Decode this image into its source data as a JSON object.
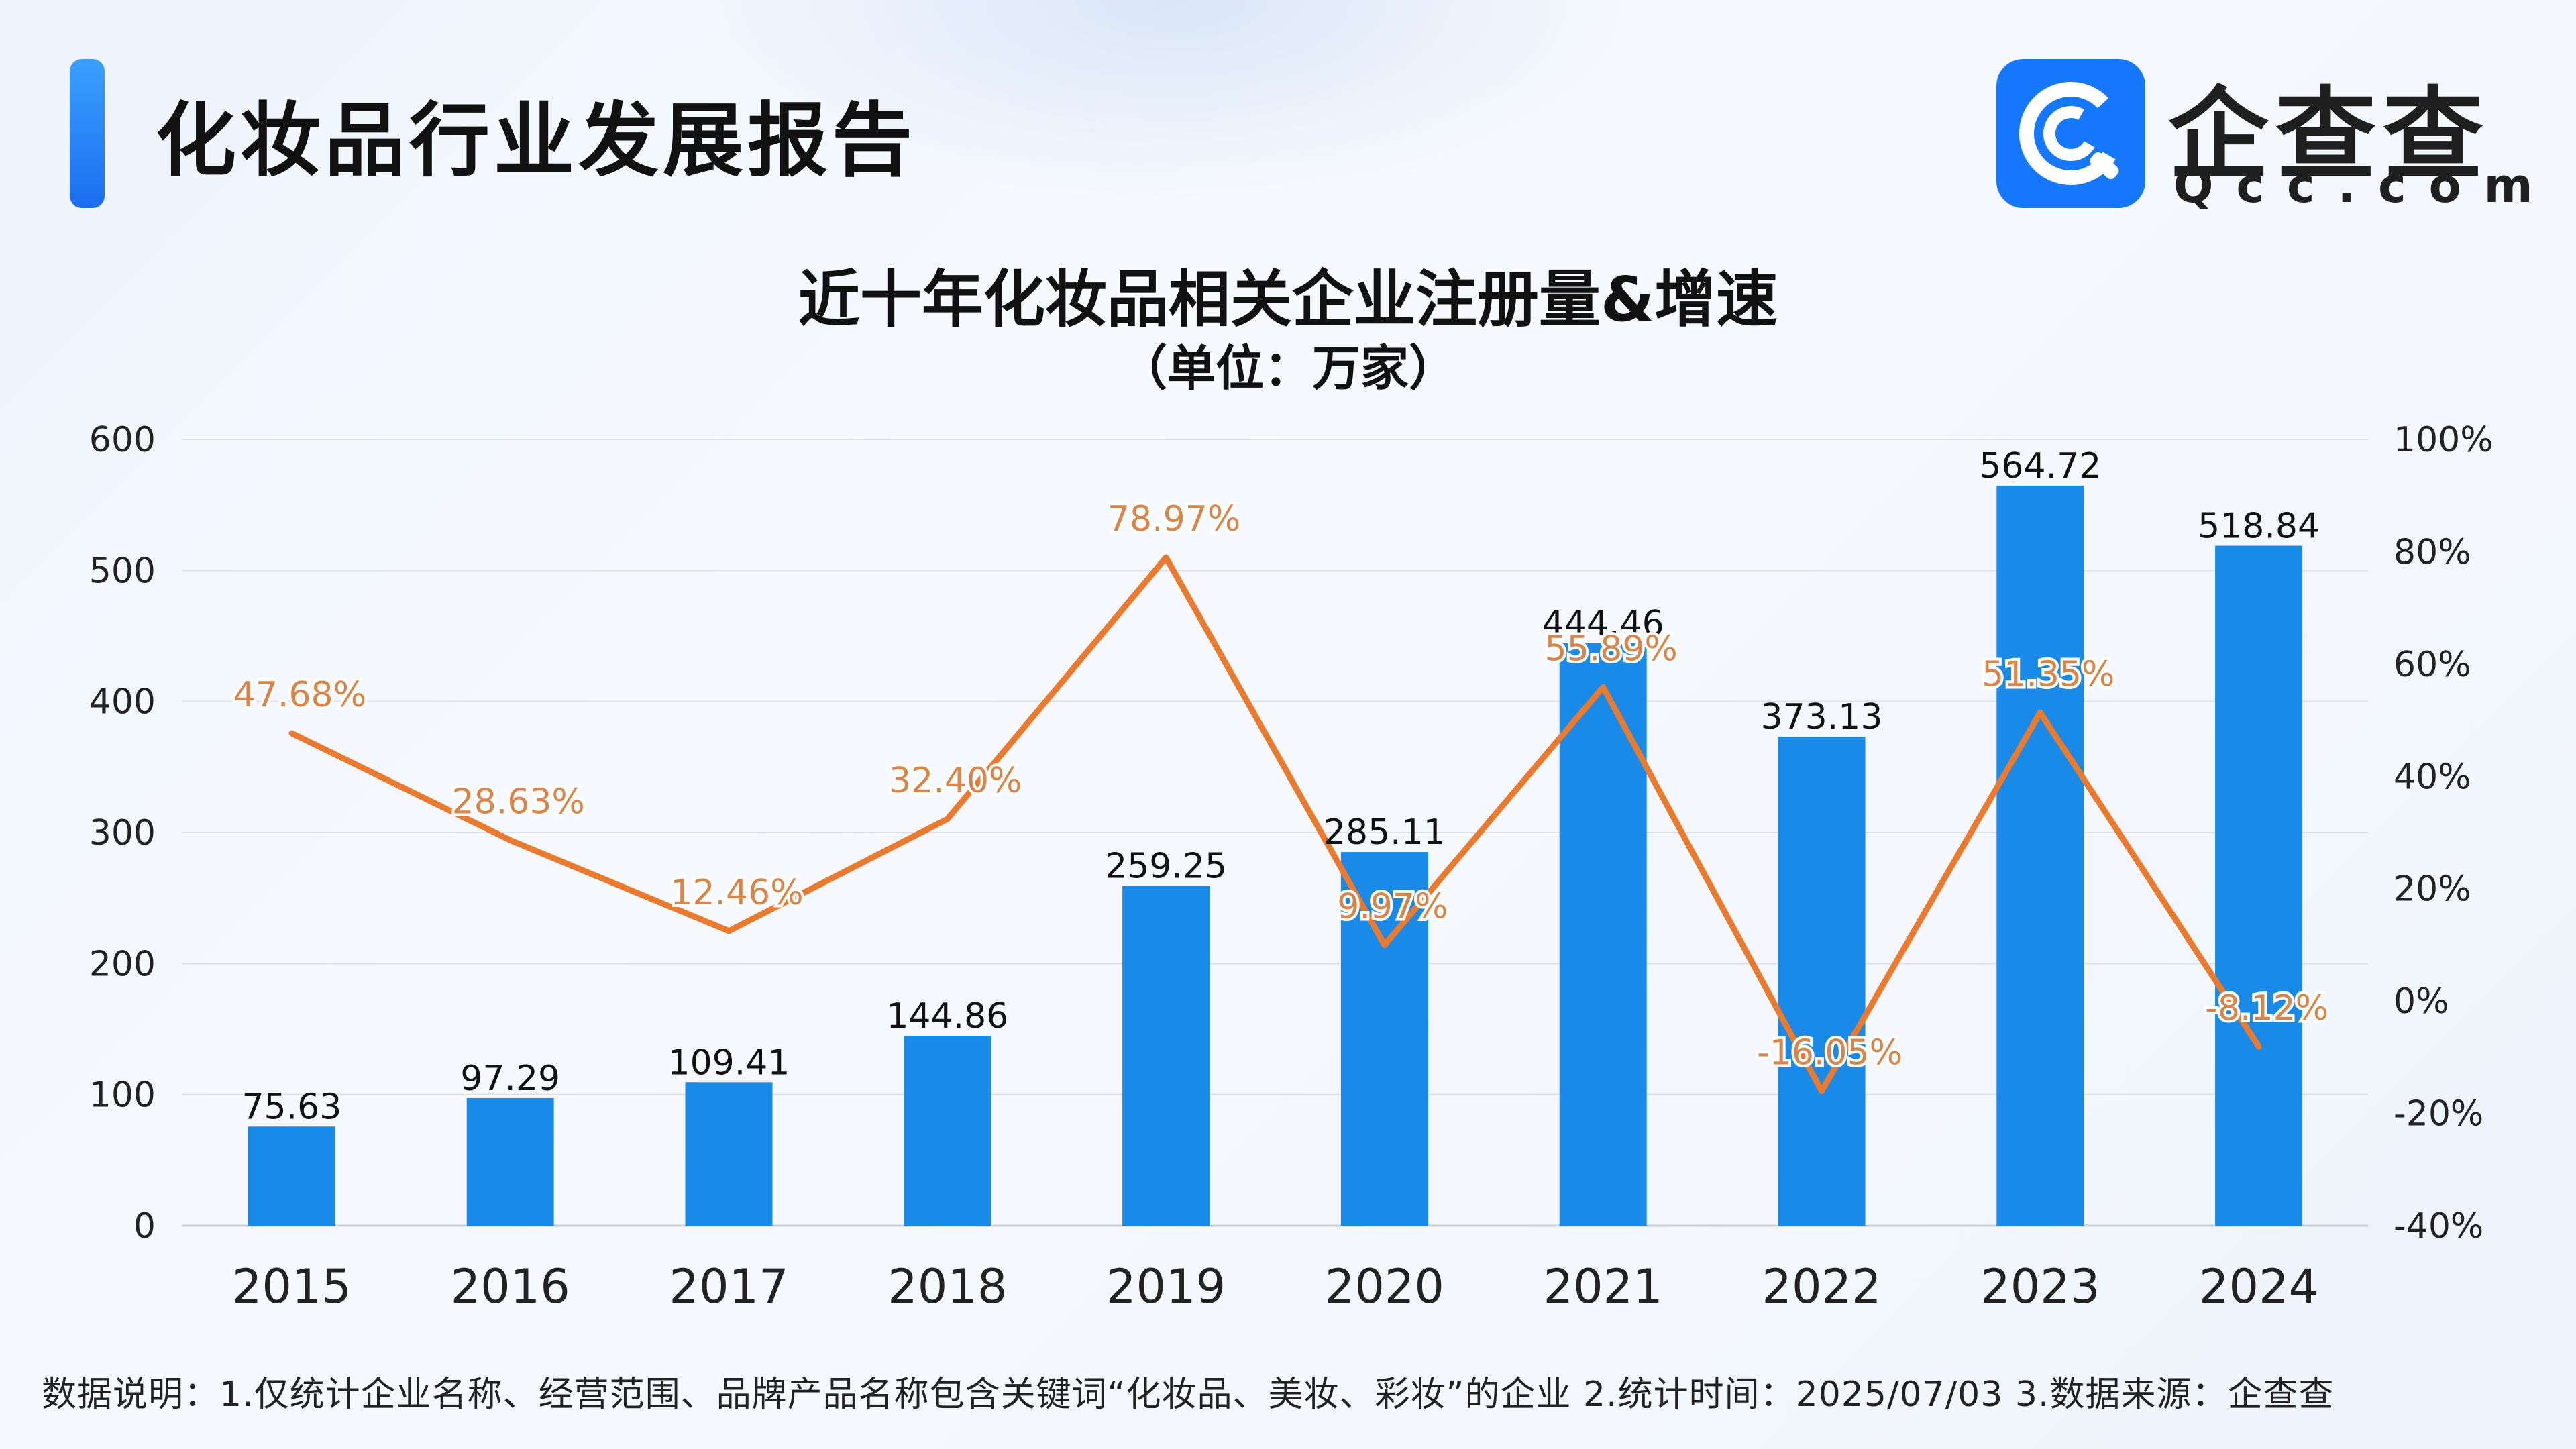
{
  "header": {
    "title": "化妆品行业发展报告",
    "logo_text": "企查查",
    "logo_domain": "Qcc.com"
  },
  "colors": {
    "bar": "#1a8ae8",
    "line": "#ea7a2e",
    "bar_label": "#111111",
    "pct_label": "#d9854a",
    "accent": "#1677ff"
  },
  "chart_data": {
    "type": "bar",
    "title": "近十年化妆品相关企业注册量&增速",
    "subtitle": "（单位：万家）",
    "categories": [
      "2015",
      "2016",
      "2017",
      "2018",
      "2019",
      "2020",
      "2021",
      "2022",
      "2023",
      "2024"
    ],
    "series": [
      {
        "type": "bar",
        "axis": "left",
        "values": [
          75.63,
          97.29,
          109.41,
          144.86,
          259.25,
          285.11,
          444.46,
          373.13,
          564.72,
          518.84
        ],
        "labels": [
          "75.63",
          "97.29",
          "109.41",
          "144.86",
          "259.25",
          "285.11",
          "444.46",
          "373.13",
          "564.72",
          "518.84"
        ]
      },
      {
        "type": "line",
        "axis": "right",
        "values": [
          47.68,
          28.63,
          12.46,
          32.4,
          78.97,
          9.97,
          55.89,
          -16.05,
          51.35,
          -8.12
        ],
        "labels": [
          "47.68%",
          "28.63%",
          "12.46%",
          "32.40%",
          "78.97%",
          "9.97%",
          "55.89%",
          "-16.05%",
          "51.35%",
          "-8.12%"
        ]
      }
    ],
    "left_axis": {
      "ylim": [
        0,
        600
      ],
      "ticks": [
        0,
        100,
        200,
        300,
        400,
        500,
        600
      ],
      "tick_labels": [
        "0",
        "100",
        "200",
        "300",
        "400",
        "500",
        "600"
      ]
    },
    "right_axis": {
      "ylim": [
        -40,
        100
      ],
      "ticks": [
        -40,
        -20,
        0,
        20,
        40,
        60,
        80,
        100
      ],
      "tick_labels": [
        "-40%",
        "-20%",
        "0%",
        "20%",
        "40%",
        "60%",
        "80%",
        "100%"
      ]
    },
    "grid": true,
    "legend": "none"
  },
  "footnote": "数据说明：1.仅统计企业名称、经营范围、品牌产品名称包含关键词“化妆品、美妆、彩妆”的企业   2.统计时间：2025/07/03    3.数据来源：企查查"
}
